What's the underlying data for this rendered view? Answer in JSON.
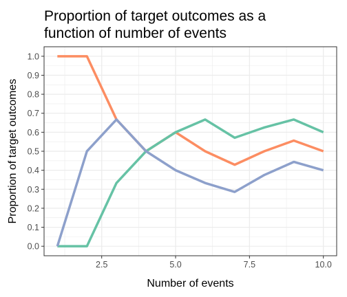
{
  "chart_data": {
    "type": "line",
    "title": "Proportion of target outcomes as a function of number of events",
    "title_lines": [
      "Proportion of target outcomes as a",
      "function of number of events"
    ],
    "xlabel": "Number of events",
    "ylabel": "Proportion of target outcomes",
    "xlim": [
      0.55,
      10.45
    ],
    "ylim": [
      -0.05,
      1.05
    ],
    "x_ticks": [
      2.5,
      5.0,
      7.5,
      10.0
    ],
    "x_tick_labels": [
      "2.5",
      "5.0",
      "7.5",
      "10.0"
    ],
    "y_ticks": [
      0,
      0.1,
      0.2,
      0.3,
      0.4,
      0.5,
      0.6,
      0.7,
      0.8,
      0.9,
      1.0
    ],
    "y_tick_labels": [
      "0.0",
      "0.1",
      "0.2",
      "0.3",
      "0.4",
      "0.5",
      "0.6",
      "0.7",
      "0.8",
      "0.9",
      "1.0"
    ],
    "grid": true,
    "legend": "none",
    "x": [
      1,
      2,
      3,
      4,
      5,
      6,
      7,
      8,
      9,
      10
    ],
    "series": [
      {
        "color": "#fc8d62",
        "values": [
          1.0,
          1.0,
          0.667,
          0.5,
          0.6,
          0.5,
          0.429,
          0.5,
          0.556,
          0.5
        ]
      },
      {
        "color": "#66c2a5",
        "values": [
          0.0,
          0.0,
          0.333,
          0.5,
          0.6,
          0.667,
          0.571,
          0.625,
          0.667,
          0.6
        ]
      },
      {
        "color": "#8da0cb",
        "values": [
          0.0,
          0.5,
          0.667,
          0.5,
          0.4,
          0.333,
          0.286,
          0.375,
          0.444,
          0.4
        ]
      }
    ]
  }
}
